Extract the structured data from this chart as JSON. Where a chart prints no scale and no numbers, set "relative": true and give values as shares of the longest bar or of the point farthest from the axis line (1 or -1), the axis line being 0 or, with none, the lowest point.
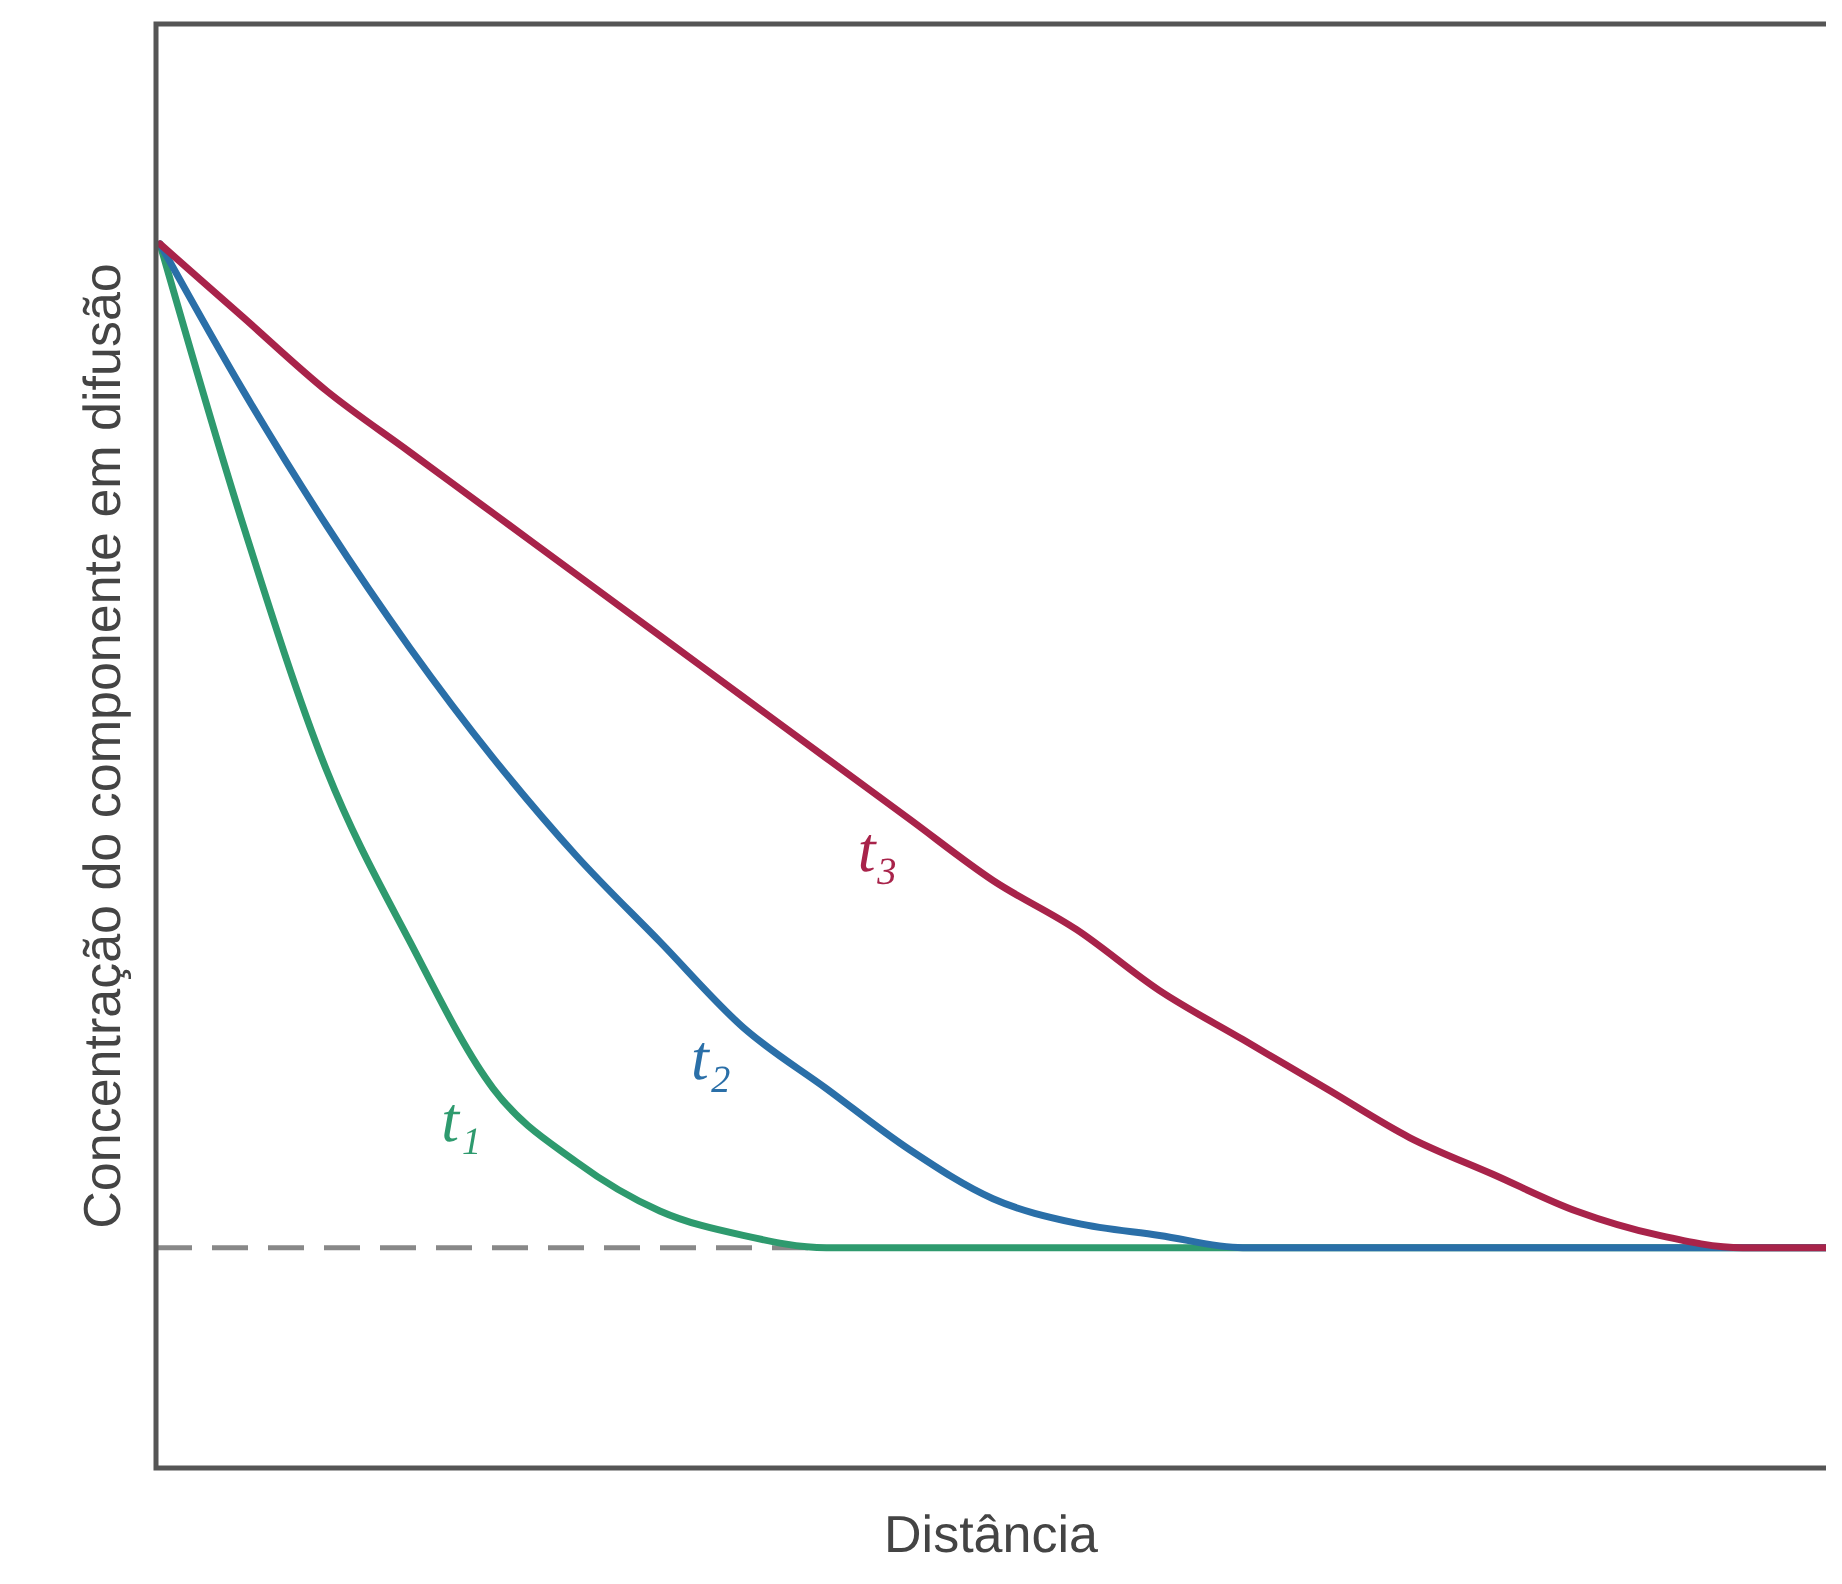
{
  "chart_data": {
    "type": "line",
    "relative": true,
    "xlabel": "Distância",
    "ylabel": "Concentração do componente em difusão",
    "categories": [
      null,
      null,
      null,
      null,
      null,
      null,
      null,
      null,
      null,
      null,
      null,
      null,
      null,
      null,
      null,
      null,
      null,
      null,
      null,
      null,
      null
    ],
    "series": [
      {
        "name": "t₁",
        "color": "#2e9a6e",
        "values": [
          1,
          0.77,
          0.57,
          0.43,
          0.31,
          0.25,
          0.21,
          0.19,
          0.18,
          0.18,
          0.18,
          0.18,
          0.18,
          0.18,
          0.18,
          0.18,
          0.18,
          0.18,
          0.18,
          0.18,
          0.18
        ]
      },
      {
        "name": "t₂",
        "color": "#2a6fa8",
        "values": [
          1,
          0.88,
          0.77,
          0.67,
          0.58,
          0.5,
          0.43,
          0.36,
          0.31,
          0.26,
          0.22,
          0.2,
          0.19,
          0.18,
          0.18,
          0.18,
          0.18,
          0.18,
          0.18,
          0.18,
          0.18
        ]
      },
      {
        "name": "t₃",
        "color": "#a8234a",
        "values": [
          1,
          0.94,
          0.88,
          0.83,
          0.78,
          0.73,
          0.68,
          0.63,
          0.58,
          0.53,
          0.48,
          0.44,
          0.39,
          0.35,
          0.31,
          0.27,
          0.24,
          0.21,
          0.19,
          0.18,
          0.18
        ]
      }
    ],
    "ref_lines": [
      {
        "axis": "y",
        "value": 0.18,
        "color": "#888888",
        "line_style": "dashed"
      }
    ],
    "marker": "none",
    "line_style": "solid"
  }
}
